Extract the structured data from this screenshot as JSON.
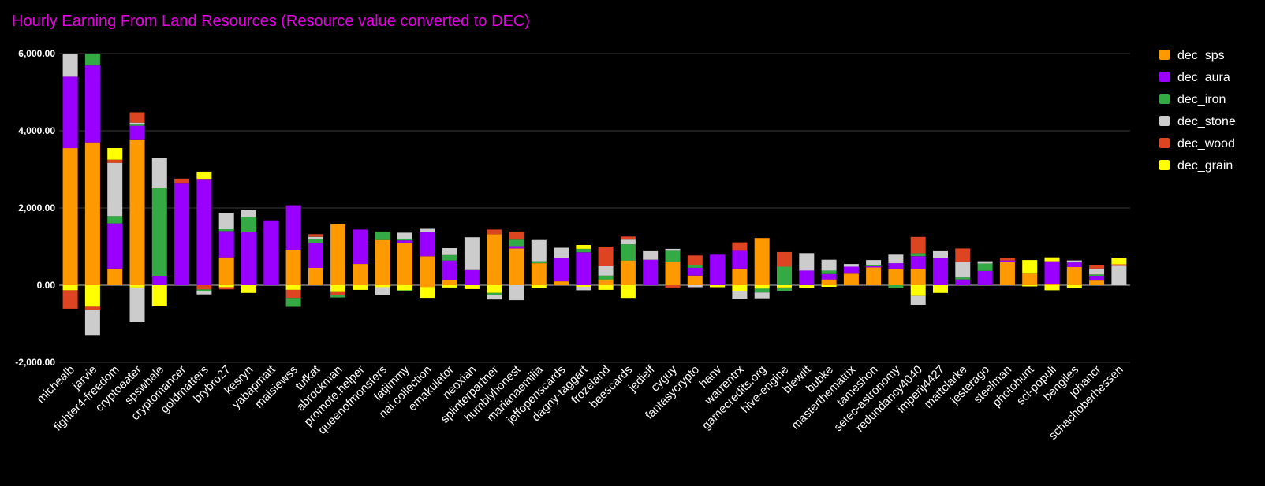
{
  "chart_data": {
    "type": "bar",
    "stacked": true,
    "title": "Hourly Earning From Land Resources (Resource value converted to DEC)",
    "xlabel": "",
    "ylabel": "",
    "ylim": [
      -2000,
      6000
    ],
    "yticks": [
      -2000,
      0,
      2000,
      4000,
      6000
    ],
    "ytick_labels": [
      "-2,000.00",
      "0.00",
      "2,000.00",
      "4,000.00",
      "6,000.00"
    ],
    "grid": true,
    "legend_position": "right",
    "categories": [
      "michealb",
      "jarvie",
      "fighter4-freedom",
      "cryptoeater",
      "spswhale",
      "cryptomancer",
      "goldmatters",
      "brybro27",
      "kesryn",
      "yabapmatt",
      "maisiewss",
      "tufkat",
      "abrockman",
      "promote.helper",
      "queenofmonsters",
      "fatjimmy",
      "nai.collection",
      "emakulator",
      "neoxian",
      "splinterpartner",
      "humblyhonest",
      "marianaemilia",
      "jeffopenscards",
      "dagny-taggart",
      "frozeland",
      "beescards",
      "jedielf",
      "cyguy",
      "fantasycrypto",
      "hanv",
      "warrentrx",
      "gamecredits.org",
      "hive-engine",
      "blewitt",
      "bubke",
      "masterthematrix",
      "tameshon",
      "setec-astronomy",
      "redundancy4040",
      "imperij4427",
      "mattclarke",
      "jesterago",
      "steelman",
      "photohunt",
      "sci-populi",
      "bengiles",
      "johancr",
      "schachoberhessen"
    ],
    "series": [
      {
        "name": "dec_sps",
        "color": "#ff9900",
        "values": [
          3550,
          3700,
          430,
          3760,
          0,
          0,
          0,
          720,
          0,
          0,
          900,
          450,
          1580,
          550,
          1170,
          1100,
          750,
          140,
          0,
          1320,
          950,
          570,
          100,
          0,
          150,
          640,
          0,
          600,
          250,
          0,
          430,
          1220,
          0,
          0,
          150,
          300,
          460,
          410,
          420,
          0,
          0,
          0,
          600,
          300,
          40,
          470,
          120,
          0
        ]
      },
      {
        "name": "dec_aura",
        "color": "#9900ff",
        "values": [
          1850,
          1990,
          1170,
          370,
          230,
          2650,
          2750,
          680,
          1380,
          1680,
          1170,
          640,
          0,
          890,
          0,
          60,
          620,
          500,
          390,
          0,
          60,
          0,
          600,
          850,
          0,
          0,
          660,
          0,
          200,
          790,
          460,
          0,
          0,
          380,
          140,
          180,
          30,
          160,
          330,
          710,
          150,
          370,
          40,
          0,
          580,
          120,
          110,
          0
        ]
      },
      {
        "name": "dec_iron",
        "color": "#33aa44",
        "values": [
          0,
          300,
          190,
          30,
          2280,
          0,
          0,
          50,
          380,
          0,
          0,
          100,
          0,
          0,
          220,
          30,
          0,
          140,
          0,
          0,
          170,
          50,
          0,
          90,
          100,
          420,
          0,
          290,
          60,
          0,
          0,
          0,
          480,
          0,
          90,
          0,
          40,
          0,
          80,
          0,
          50,
          190,
          0,
          0,
          0,
          0,
          50,
          0
        ]
      },
      {
        "name": "dec_stone",
        "color": "#cccccc",
        "values": [
          580,
          0,
          1380,
          50,
          790,
          0,
          0,
          420,
          180,
          0,
          0,
          60,
          0,
          0,
          0,
          170,
          90,
          180,
          850,
          0,
          0,
          550,
          270,
          0,
          240,
          120,
          220,
          50,
          0,
          0,
          0,
          0,
          0,
          450,
          280,
          70,
          120,
          220,
          0,
          170,
          400,
          60,
          0,
          0,
          0,
          50,
          150,
          500
        ]
      },
      {
        "name": "dec_wood",
        "color": "#dd4422",
        "values": [
          0,
          0,
          80,
          270,
          0,
          110,
          0,
          0,
          0,
          0,
          0,
          70,
          0,
          0,
          0,
          0,
          0,
          0,
          0,
          120,
          210,
          0,
          0,
          0,
          510,
          80,
          0,
          0,
          260,
          0,
          220,
          0,
          380,
          0,
          0,
          0,
          0,
          0,
          420,
          0,
          350,
          0,
          60,
          0,
          0,
          0,
          90,
          40
        ]
      },
      {
        "name": "dec_grain",
        "color": "#ffff00",
        "values": [
          0,
          0,
          300,
          0,
          0,
          0,
          190,
          0,
          0,
          0,
          0,
          0,
          0,
          0,
          0,
          0,
          0,
          0,
          0,
          0,
          0,
          0,
          0,
          100,
          0,
          0,
          0,
          0,
          0,
          0,
          0,
          0,
          0,
          0,
          0,
          0,
          0,
          0,
          0,
          0,
          0,
          0,
          0,
          350,
          100,
          0,
          0,
          170
        ]
      },
      {
        "name": "dec_sps_neg",
        "color": "#ff9900",
        "legend": false,
        "values": [
          0,
          0,
          0,
          0,
          0,
          0,
          0,
          0,
          0,
          0,
          0,
          0,
          0,
          0,
          0,
          0,
          -50,
          0,
          0,
          0,
          0,
          0,
          0,
          0,
          0,
          0,
          0,
          0,
          0,
          0,
          0,
          0,
          0,
          0,
          0,
          0,
          0,
          0,
          0,
          0,
          0,
          0,
          0,
          0,
          0,
          0,
          0,
          0
        ]
      },
      {
        "name": "dec_grain_neg",
        "color": "#ffff00",
        "legend": false,
        "values": [
          -130,
          -560,
          0,
          -60,
          -550,
          0,
          0,
          -50,
          -200,
          0,
          -120,
          0,
          -180,
          -120,
          -50,
          -130,
          -280,
          -60,
          -100,
          -200,
          0,
          -80,
          0,
          -40,
          -120,
          -330,
          0,
          0,
          0,
          -50,
          -160,
          -90,
          -60,
          -80,
          -40,
          0,
          0,
          0,
          -280,
          -200,
          0,
          0,
          0,
          -30,
          -130,
          -80,
          0,
          0
        ]
      },
      {
        "name": "dec_wood_neg",
        "color": "#dd4422",
        "legend": false,
        "values": [
          -480,
          -80,
          0,
          0,
          0,
          0,
          -110,
          -60,
          0,
          0,
          -210,
          0,
          -80,
          0,
          0,
          0,
          0,
          0,
          0,
          0,
          0,
          0,
          0,
          0,
          0,
          0,
          0,
          -60,
          0,
          0,
          0,
          0,
          0,
          0,
          0,
          0,
          0,
          0,
          0,
          0,
          0,
          0,
          0,
          0,
          0,
          0,
          0,
          0
        ]
      },
      {
        "name": "dec_iron_neg",
        "color": "#33aa44",
        "legend": false,
        "values": [
          0,
          0,
          0,
          0,
          0,
          0,
          -50,
          0,
          0,
          0,
          -230,
          0,
          -60,
          0,
          0,
          -30,
          0,
          0,
          0,
          -50,
          0,
          0,
          0,
          0,
          0,
          0,
          0,
          0,
          0,
          0,
          0,
          -100,
          -90,
          0,
          0,
          0,
          0,
          -70,
          0,
          0,
          0,
          0,
          0,
          0,
          0,
          0,
          0,
          0
        ]
      },
      {
        "name": "dec_stone_neg",
        "color": "#cccccc",
        "legend": false,
        "values": [
          0,
          -650,
          0,
          -900,
          0,
          0,
          -80,
          0,
          0,
          0,
          0,
          0,
          0,
          0,
          -210,
          0,
          0,
          0,
          0,
          -120,
          -390,
          0,
          0,
          -90,
          0,
          0,
          0,
          0,
          -50,
          0,
          -190,
          -150,
          0,
          0,
          0,
          0,
          0,
          0,
          -230,
          0,
          0,
          0,
          0,
          0,
          0,
          0,
          0,
          0
        ]
      }
    ]
  }
}
